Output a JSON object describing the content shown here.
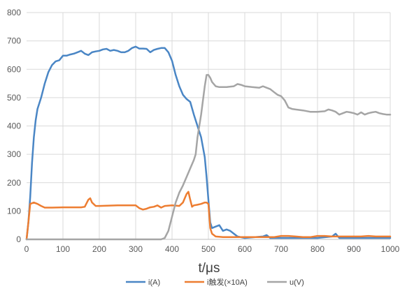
{
  "chart_data": {
    "type": "line",
    "xlabel": "t/μs",
    "ylabel": "",
    "xlim": [
      0,
      1000
    ],
    "ylim": [
      0,
      800
    ],
    "x_ticks": [
      "0",
      "100",
      "200",
      "300",
      "400",
      "500",
      "600",
      "700",
      "800",
      "900",
      "1000"
    ],
    "y_ticks": [
      "0",
      "100",
      "200",
      "300",
      "400",
      "500",
      "600",
      "700",
      "800"
    ],
    "grid": true,
    "legend_position": "bottom",
    "series": [
      {
        "name": "i(A)",
        "color": "#4a86c5",
        "points": [
          [
            0,
            0
          ],
          [
            5,
            60
          ],
          [
            10,
            150
          ],
          [
            15,
            270
          ],
          [
            20,
            360
          ],
          [
            25,
            420
          ],
          [
            30,
            460
          ],
          [
            40,
            500
          ],
          [
            50,
            550
          ],
          [
            60,
            590
          ],
          [
            70,
            615
          ],
          [
            80,
            628
          ],
          [
            90,
            632
          ],
          [
            100,
            648
          ],
          [
            110,
            648
          ],
          [
            120,
            652
          ],
          [
            130,
            655
          ],
          [
            140,
            660
          ],
          [
            150,
            665
          ],
          [
            160,
            655
          ],
          [
            170,
            650
          ],
          [
            180,
            660
          ],
          [
            190,
            663
          ],
          [
            200,
            665
          ],
          [
            210,
            670
          ],
          [
            220,
            672
          ],
          [
            230,
            665
          ],
          [
            240,
            668
          ],
          [
            250,
            665
          ],
          [
            260,
            660
          ],
          [
            270,
            660
          ],
          [
            280,
            665
          ],
          [
            290,
            675
          ],
          [
            300,
            680
          ],
          [
            310,
            673
          ],
          [
            320,
            673
          ],
          [
            330,
            672
          ],
          [
            340,
            660
          ],
          [
            350,
            668
          ],
          [
            360,
            672
          ],
          [
            370,
            675
          ],
          [
            380,
            675
          ],
          [
            390,
            660
          ],
          [
            400,
            630
          ],
          [
            410,
            580
          ],
          [
            420,
            540
          ],
          [
            430,
            510
          ],
          [
            440,
            495
          ],
          [
            450,
            485
          ],
          [
            460,
            440
          ],
          [
            470,
            400
          ],
          [
            480,
            360
          ],
          [
            490,
            290
          ],
          [
            495,
            220
          ],
          [
            500,
            140
          ],
          [
            505,
            60
          ],
          [
            510,
            40
          ],
          [
            520,
            45
          ],
          [
            530,
            50
          ],
          [
            540,
            30
          ],
          [
            550,
            35
          ],
          [
            560,
            30
          ],
          [
            570,
            20
          ],
          [
            580,
            10
          ],
          [
            600,
            5
          ],
          [
            650,
            10
          ],
          [
            660,
            15
          ],
          [
            670,
            5
          ],
          [
            700,
            5
          ],
          [
            750,
            5
          ],
          [
            800,
            5
          ],
          [
            840,
            10
          ],
          [
            850,
            20
          ],
          [
            860,
            5
          ],
          [
            900,
            5
          ],
          [
            950,
            5
          ],
          [
            1000,
            5
          ]
        ]
      },
      {
        "name": "i触发(×10A)",
        "color": "#ed7d31",
        "points": [
          [
            0,
            0
          ],
          [
            5,
            60
          ],
          [
            10,
            125
          ],
          [
            20,
            130
          ],
          [
            30,
            125
          ],
          [
            40,
            118
          ],
          [
            50,
            112
          ],
          [
            70,
            112
          ],
          [
            100,
            113
          ],
          [
            130,
            113
          ],
          [
            150,
            113
          ],
          [
            160,
            115
          ],
          [
            170,
            140
          ],
          [
            175,
            145
          ],
          [
            180,
            130
          ],
          [
            190,
            118
          ],
          [
            200,
            118
          ],
          [
            250,
            120
          ],
          [
            280,
            120
          ],
          [
            300,
            120
          ],
          [
            310,
            110
          ],
          [
            320,
            105
          ],
          [
            330,
            108
          ],
          [
            340,
            113
          ],
          [
            350,
            115
          ],
          [
            360,
            120
          ],
          [
            370,
            112
          ],
          [
            380,
            118
          ],
          [
            400,
            120
          ],
          [
            420,
            118
          ],
          [
            430,
            130
          ],
          [
            440,
            160
          ],
          [
            445,
            168
          ],
          [
            450,
            140
          ],
          [
            455,
            115
          ],
          [
            460,
            120
          ],
          [
            470,
            122
          ],
          [
            480,
            125
          ],
          [
            490,
            130
          ],
          [
            495,
            130
          ],
          [
            500,
            125
          ],
          [
            505,
            40
          ],
          [
            510,
            20
          ],
          [
            520,
            10
          ],
          [
            540,
            8
          ],
          [
            560,
            8
          ],
          [
            600,
            8
          ],
          [
            620,
            8
          ],
          [
            640,
            8
          ],
          [
            660,
            8
          ],
          [
            680,
            8
          ],
          [
            700,
            12
          ],
          [
            720,
            12
          ],
          [
            740,
            10
          ],
          [
            760,
            8
          ],
          [
            780,
            8
          ],
          [
            800,
            12
          ],
          [
            820,
            12
          ],
          [
            840,
            10
          ],
          [
            860,
            10
          ],
          [
            880,
            10
          ],
          [
            900,
            10
          ],
          [
            920,
            10
          ],
          [
            940,
            12
          ],
          [
            960,
            10
          ],
          [
            980,
            10
          ],
          [
            1000,
            10
          ]
        ]
      },
      {
        "name": "u(V)",
        "color": "#a5a5a5",
        "points": [
          [
            0,
            0
          ],
          [
            100,
            0
          ],
          [
            200,
            0
          ],
          [
            300,
            0
          ],
          [
            370,
            0
          ],
          [
            380,
            5
          ],
          [
            390,
            30
          ],
          [
            400,
            80
          ],
          [
            410,
            130
          ],
          [
            420,
            165
          ],
          [
            430,
            190
          ],
          [
            440,
            220
          ],
          [
            450,
            250
          ],
          [
            460,
            280
          ],
          [
            465,
            300
          ],
          [
            470,
            360
          ],
          [
            480,
            440
          ],
          [
            490,
            540
          ],
          [
            495,
            580
          ],
          [
            500,
            580
          ],
          [
            505,
            570
          ],
          [
            510,
            555
          ],
          [
            520,
            540
          ],
          [
            530,
            537
          ],
          [
            550,
            537
          ],
          [
            570,
            540
          ],
          [
            580,
            548
          ],
          [
            590,
            545
          ],
          [
            600,
            540
          ],
          [
            620,
            537
          ],
          [
            640,
            535
          ],
          [
            650,
            540
          ],
          [
            660,
            535
          ],
          [
            670,
            530
          ],
          [
            680,
            520
          ],
          [
            690,
            510
          ],
          [
            700,
            505
          ],
          [
            710,
            490
          ],
          [
            720,
            465
          ],
          [
            730,
            460
          ],
          [
            740,
            458
          ],
          [
            760,
            455
          ],
          [
            780,
            450
          ],
          [
            800,
            450
          ],
          [
            820,
            452
          ],
          [
            830,
            458
          ],
          [
            840,
            455
          ],
          [
            850,
            450
          ],
          [
            860,
            440
          ],
          [
            870,
            445
          ],
          [
            880,
            450
          ],
          [
            890,
            448
          ],
          [
            900,
            445
          ],
          [
            910,
            440
          ],
          [
            920,
            448
          ],
          [
            930,
            440
          ],
          [
            940,
            445
          ],
          [
            950,
            448
          ],
          [
            960,
            450
          ],
          [
            970,
            445
          ],
          [
            980,
            442
          ],
          [
            990,
            440
          ],
          [
            1000,
            440
          ]
        ]
      }
    ]
  }
}
